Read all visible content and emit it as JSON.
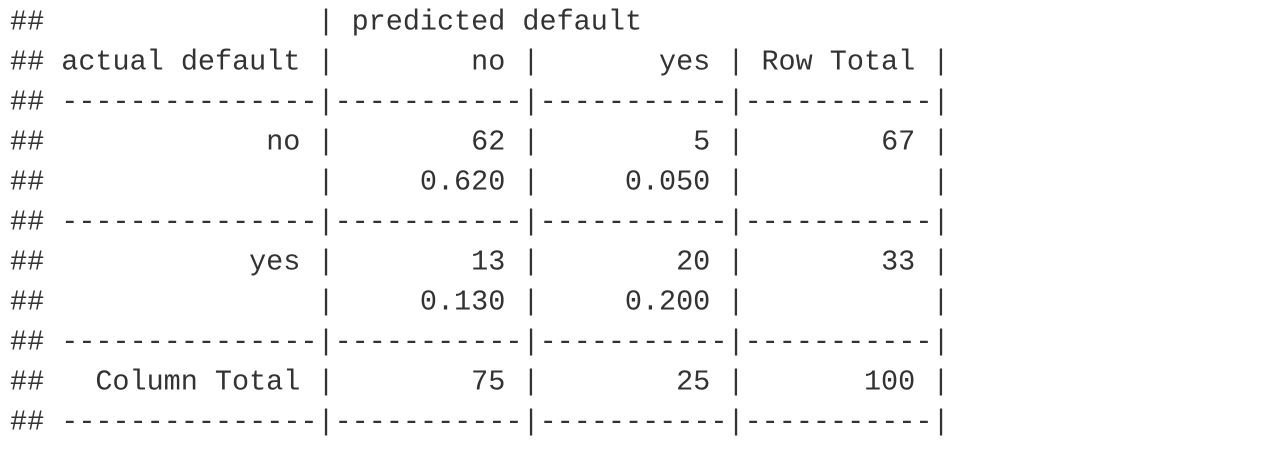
{
  "prompt": "##",
  "pipe": "|",
  "separator": "---------------|-----------|-----------|-----------|",
  "column_variable": "predicted default",
  "row_variable": "actual default",
  "column_labels": [
    "no",
    "yes"
  ],
  "row_total_label": "Row Total",
  "column_total_label": "Column Total",
  "rows": [
    {
      "label": "no",
      "counts": [
        62,
        5
      ],
      "proportions": [
        "0.620",
        "0.050"
      ],
      "total": 67
    },
    {
      "label": "yes",
      "counts": [
        13,
        20
      ],
      "proportions": [
        "0.130",
        "0.200"
      ],
      "total": 33
    }
  ],
  "column_totals": [
    75,
    25,
    100
  ]
}
